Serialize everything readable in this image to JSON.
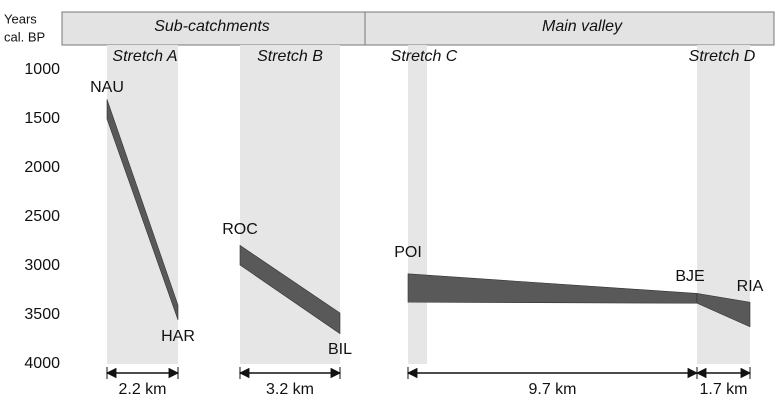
{
  "chart_data": {
    "type": "band",
    "ylabel": [
      "Years",
      "cal. BP"
    ],
    "groups": [
      "Sub-catchments",
      "Main valley"
    ],
    "stretches": [
      "Stretch A",
      "Stretch B",
      "Stretch C",
      "Stretch D"
    ],
    "ylim": [
      1000,
      4000
    ],
    "inverted": true,
    "yticks": [
      1000,
      1500,
      2000,
      2500,
      3000,
      3500,
      4000
    ],
    "sites": [
      "NAU",
      "HAR",
      "ROC",
      "BIL",
      "POI",
      "BJE",
      "RIA"
    ],
    "segments": [
      {
        "values": [
          [
            1300,
            1500
          ],
          [
            3400,
            3550
          ]
        ]
      },
      {
        "values": [
          [
            2790,
            2990
          ],
          [
            3480,
            3690
          ]
        ]
      },
      {
        "values": [
          [
            3080,
            3370
          ],
          [
            3280,
            3380
          ]
        ]
      },
      {
        "values": [
          [
            3280,
            3380
          ],
          [
            3370,
            3620
          ]
        ]
      }
    ],
    "distances": [
      "2.2 km",
      "3.2 km",
      "9.7 km",
      "1.7 km"
    ],
    "color": "#595959"
  }
}
